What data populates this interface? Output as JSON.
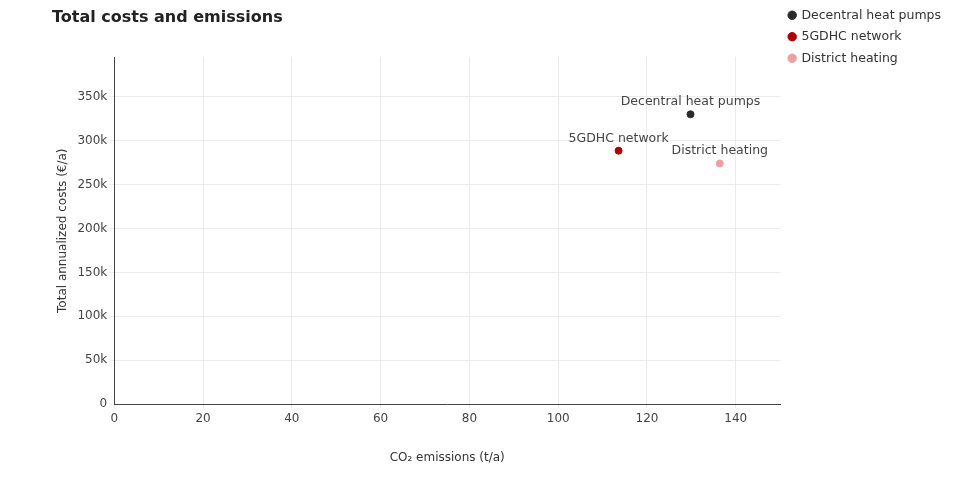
{
  "chart_data": {
    "type": "scatter",
    "title": "Total costs and emissions",
    "x_label": "CO₂ emissions (t/a)",
    "y_label": "Total annualized costs (€/a)",
    "series": [
      {
        "name": "Decentral heat pumps",
        "color": "#2b2b2b",
        "x": [
          129.8
        ],
        "values": [
          330000
        ]
      },
      {
        "name": "5GDHC network",
        "color": "#b00000",
        "x": [
          113.6
        ],
        "values": [
          288600
        ]
      },
      {
        "name": "District heating",
        "color": "#eba1a1",
        "x": [
          136.4
        ],
        "values": [
          274000
        ]
      }
    ],
    "xlim": [
      0,
      150
    ],
    "xticks": [
      0,
      20,
      40,
      60,
      80,
      100,
      120,
      140
    ],
    "ylim": [
      0,
      395000
    ],
    "yticks": [
      {
        "value": 0,
        "label": "0"
      },
      {
        "value": 50000,
        "label": "50k"
      },
      {
        "value": 100000,
        "label": "100k"
      },
      {
        "value": 150000,
        "label": "150k"
      },
      {
        "value": 200000,
        "label": "200k"
      },
      {
        "value": 250000,
        "label": "250k"
      },
      {
        "value": 300000,
        "label": "300k"
      },
      {
        "value": 350000,
        "label": "350k"
      }
    ],
    "grid": true,
    "legend": "top right",
    "marker": "circle"
  }
}
